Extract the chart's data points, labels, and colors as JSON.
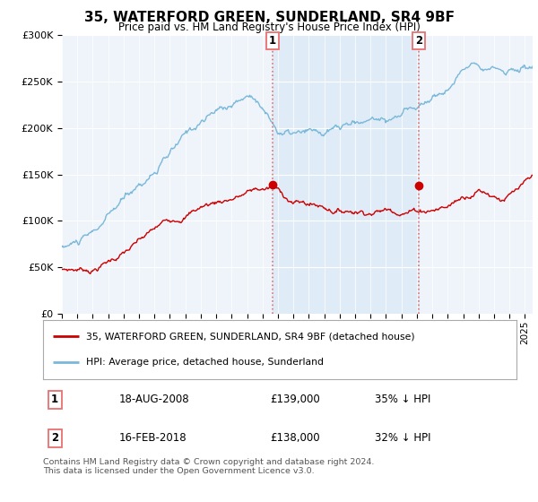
{
  "title": "35, WATERFORD GREEN, SUNDERLAND, SR4 9BF",
  "subtitle": "Price paid vs. HM Land Registry's House Price Index (HPI)",
  "legend_line1": "35, WATERFORD GREEN, SUNDERLAND, SR4 9BF (detached house)",
  "legend_line2": "HPI: Average price, detached house, Sunderland",
  "table_row1_date": "18-AUG-2008",
  "table_row1_price": "£139,000",
  "table_row1_hpi": "35% ↓ HPI",
  "table_row2_date": "16-FEB-2018",
  "table_row2_price": "£138,000",
  "table_row2_hpi": "32% ↓ HPI",
  "copyright": "Contains HM Land Registry data © Crown copyright and database right 2024.\nThis data is licensed under the Open Government Licence v3.0.",
  "sale1_year": 2008.63,
  "sale1_price": 139000,
  "sale2_year": 2018.12,
  "sale2_price": 138000,
  "hpi_color": "#7ab8d9",
  "property_color": "#cc0000",
  "vline_color": "#e87070",
  "shade_color": "#d6e8f5",
  "bg_color": "#ffffff",
  "plot_bg_color": "#eef4fa",
  "ylim": [
    0,
    300000
  ],
  "xlim_start": 1995,
  "xlim_end": 2025.5
}
